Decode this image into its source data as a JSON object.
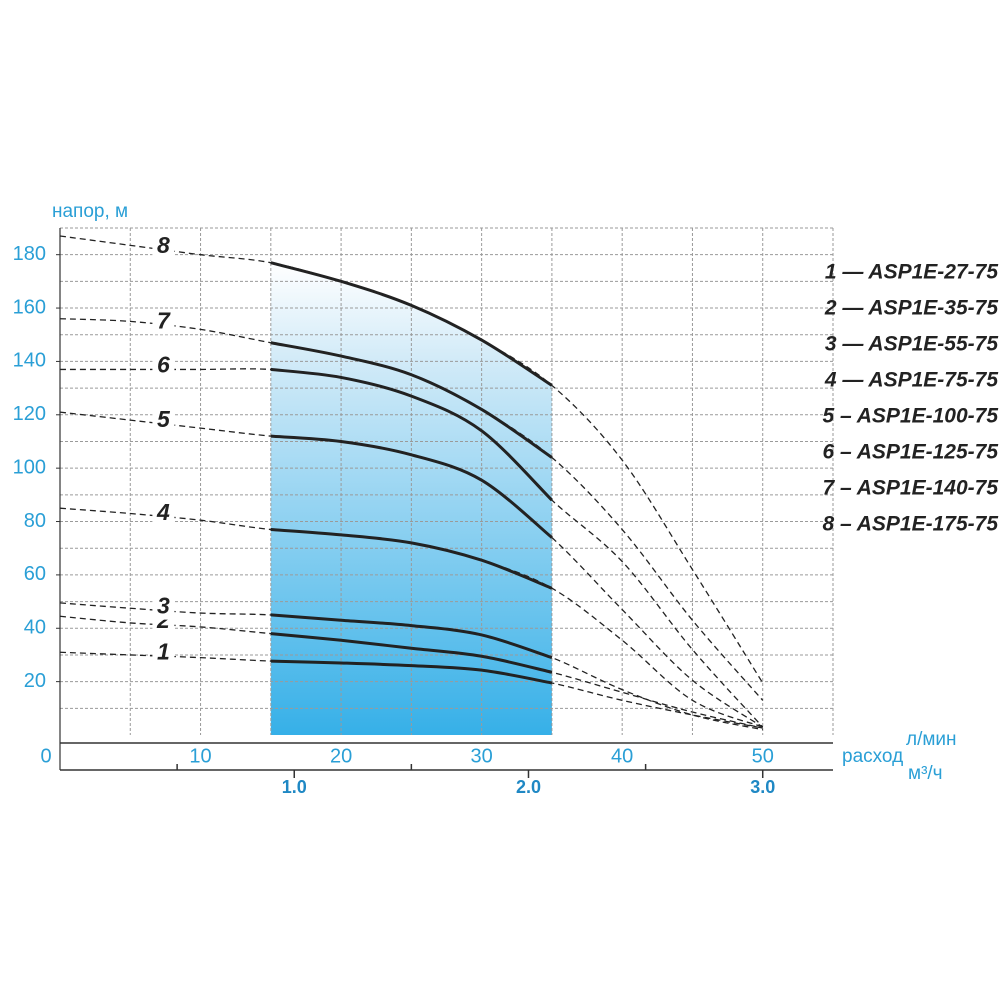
{
  "chart_data": {
    "type": "line",
    "y_label": "напор, м",
    "x_label": "расход",
    "x_unit": "л/мин",
    "x2_unit": "м³/ч",
    "x": [
      0,
      5,
      10,
      15,
      20,
      25,
      30,
      35,
      40,
      45,
      50
    ],
    "xlim": [
      0,
      55
    ],
    "ylim": [
      0,
      190
    ],
    "xticks": [
      0,
      10,
      20,
      30,
      40,
      50
    ],
    "yticks": [
      20,
      40,
      60,
      80,
      100,
      120,
      140,
      160,
      180
    ],
    "xgrid": [
      5,
      10,
      15,
      20,
      25,
      30,
      35,
      40,
      45,
      50,
      55
    ],
    "ygrid": [
      10,
      20,
      30,
      40,
      50,
      60,
      70,
      80,
      90,
      100,
      110,
      120,
      130,
      140,
      150,
      160,
      170,
      180,
      190
    ],
    "x2lim": [
      0,
      3.3
    ],
    "x2ticks": [
      {
        "value": 1,
        "label": "1.0"
      },
      {
        "value": 2,
        "label": "2.0"
      },
      {
        "value": 3,
        "label": "3.0"
      }
    ],
    "x2minor": [
      0.5,
      1.5,
      2.5
    ],
    "highlight_x": [
      15,
      35
    ],
    "grid": true,
    "legend": "right",
    "series": [
      {
        "name": "1 — ASP1E-27-75",
        "label": "1",
        "color": "#222222",
        "values": [
          31,
          30,
          29,
          27.7,
          27,
          26,
          24.3,
          19.5,
          13,
          7.5,
          2.6
        ]
      },
      {
        "name": "2 — ASP1E-35-75",
        "label": "2",
        "color": "#222222",
        "values": [
          44.5,
          42,
          40.5,
          38,
          35.5,
          32.5,
          29.5,
          23.5,
          16,
          8.6,
          2.6
        ]
      },
      {
        "name": "3 — ASP1E-55-75",
        "label": "3",
        "color": "#222222",
        "values": [
          49.5,
          47.5,
          45.7,
          45,
          43,
          41,
          37.5,
          29,
          17,
          7.5,
          2
        ]
      },
      {
        "name": "4 — ASP1E-75-75",
        "label": "4",
        "color": "#222222",
        "values": [
          85,
          83,
          80.5,
          77,
          75,
          72,
          65.5,
          55,
          35.5,
          13,
          3
        ]
      },
      {
        "name": "5 – ASP1E-100-75",
        "label": "5",
        "color": "#222222",
        "values": [
          121,
          118,
          115,
          112,
          110,
          105,
          95.5,
          74,
          47,
          20.5,
          3
        ]
      },
      {
        "name": "6 – ASP1E-125-75",
        "label": "6",
        "color": "#222222",
        "values": [
          137,
          137,
          137,
          137,
          134,
          127,
          114,
          88,
          65,
          32,
          3
        ]
      },
      {
        "name": "7 – ASP1E-140-75",
        "label": "7",
        "color": "#222222",
        "values": [
          156,
          155,
          152,
          147,
          142,
          135,
          122,
          104,
          77,
          43,
          13
        ]
      },
      {
        "name": "8 – ASP1E-175-75",
        "label": "8",
        "color": "#222222",
        "values": [
          187,
          183.5,
          180,
          177,
          170,
          161,
          148,
          131,
          103,
          62,
          19.5
        ]
      }
    ]
  }
}
